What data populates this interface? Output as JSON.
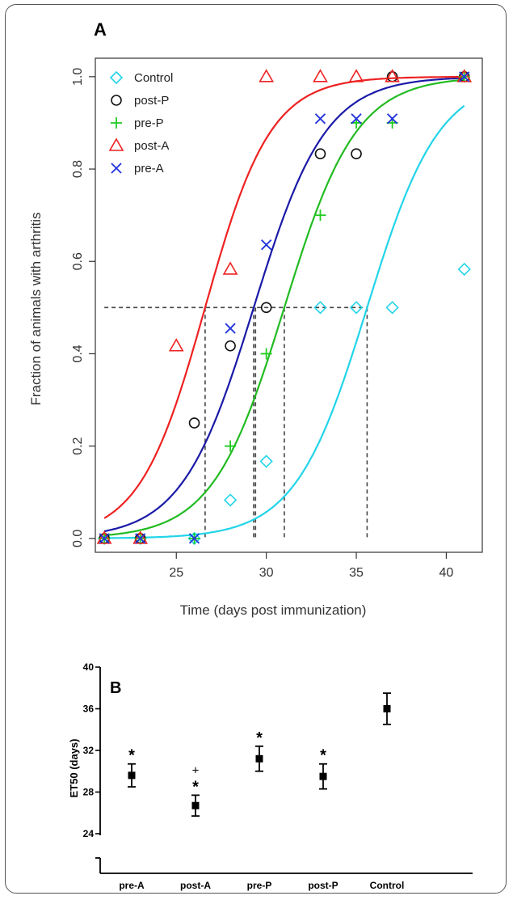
{
  "chart_data": [
    {
      "panel_label": "A",
      "type": "scatter",
      "xlabel": "Time (days post immunization)",
      "ylabel": "Fraction of animals with arthritis",
      "xlim": [
        20.5,
        42
      ],
      "ylim": [
        -0.03,
        1.04
      ],
      "xticks": [
        "25",
        "30",
        "35",
        "40"
      ],
      "yticks": [
        "0.0",
        "0.2",
        "0.4",
        "0.6",
        "0.8",
        "1.0"
      ],
      "grid": false,
      "legend_position": "top-left",
      "series": [
        {
          "name": "Control",
          "marker": "diamond",
          "color": "#22d4e8",
          "points": [
            [
              21,
              0
            ],
            [
              23,
              0
            ],
            [
              26,
              0
            ],
            [
              28,
              0.083
            ],
            [
              30,
              0.167
            ],
            [
              33,
              0.5
            ],
            [
              35,
              0.5
            ],
            [
              37,
              0.5
            ],
            [
              41,
              0.583
            ]
          ],
          "et50": 35.6,
          "curve_end": 41
        },
        {
          "name": "post-P",
          "marker": "circle",
          "color": "#111111",
          "points": [
            [
              21,
              0
            ],
            [
              23,
              0
            ],
            [
              26,
              0.25
            ],
            [
              28,
              0.417
            ],
            [
              30,
              0.5
            ],
            [
              33,
              0.833
            ],
            [
              35,
              0.833
            ],
            [
              37,
              1.0
            ],
            [
              41,
              1.0
            ]
          ],
          "et50": 29.4,
          "curve_end": 41
        },
        {
          "name": "pre-P",
          "marker": "plus",
          "color": "#22cc22",
          "points": [
            [
              21,
              0
            ],
            [
              23,
              0
            ],
            [
              26,
              0
            ],
            [
              28,
              0.2
            ],
            [
              30,
              0.4
            ],
            [
              33,
              0.7
            ],
            [
              35,
              0.9
            ],
            [
              37,
              0.9
            ],
            [
              41,
              1.0
            ]
          ],
          "et50": 31.0,
          "curve_end": 41
        },
        {
          "name": "post-A",
          "marker": "triangle",
          "color": "#ee2222",
          "points": [
            [
              21,
              0
            ],
            [
              23,
              0
            ],
            [
              25,
              0.417
            ],
            [
              28,
              0.583
            ],
            [
              30,
              1.0
            ],
            [
              33,
              1.0
            ],
            [
              35,
              1.0
            ],
            [
              37,
              1.0
            ],
            [
              41,
              1.0
            ]
          ],
          "et50": 26.6,
          "curve_end": 41
        },
        {
          "name": "pre-A",
          "marker": "x",
          "color": "#2233dd",
          "points": [
            [
              21,
              0
            ],
            [
              23,
              0
            ],
            [
              26,
              0
            ],
            [
              28,
              0.455
            ],
            [
              30,
              0.636
            ],
            [
              33,
              0.909
            ],
            [
              35,
              0.909
            ],
            [
              37,
              0.909
            ],
            [
              41,
              1.0
            ]
          ],
          "et50": 29.3,
          "curve_end": 41
        }
      ],
      "fit_lines": [
        {
          "series": "Control",
          "color": "#22d4e8",
          "midpoint": 35.6,
          "slope": 0.5
        },
        {
          "series": "post-P",
          "color": "#1a1aa8",
          "midpoint": 29.3,
          "slope": 0.5
        },
        {
          "series": "pre-P",
          "color": "#22bb22",
          "midpoint": 31.0,
          "slope": 0.5
        },
        {
          "series": "post-A",
          "color": "#ee2222",
          "midpoint": 26.6,
          "slope": 0.55
        }
      ],
      "reference_level": 0.5,
      "reference_x": [
        26.6,
        29.3,
        29.4,
        31.0,
        35.6
      ]
    },
    {
      "panel_label": "B",
      "type": "errorbar",
      "ylabel": "ET50 (days)",
      "ylim": [
        24,
        40
      ],
      "yticks": [
        "24",
        "28",
        "32",
        "36",
        "40"
      ],
      "categories": [
        "pre-A",
        "post-A",
        "pre-P",
        "post-P",
        "Control"
      ],
      "values": [
        29.6,
        26.7,
        31.2,
        29.5,
        36.0
      ],
      "errors": [
        1.1,
        1.0,
        1.2,
        1.2,
        1.5
      ],
      "annotations": [
        "*",
        "*",
        "*",
        "*",
        ""
      ],
      "extra_annotations": [
        "",
        "+",
        "",
        "",
        ""
      ]
    }
  ]
}
